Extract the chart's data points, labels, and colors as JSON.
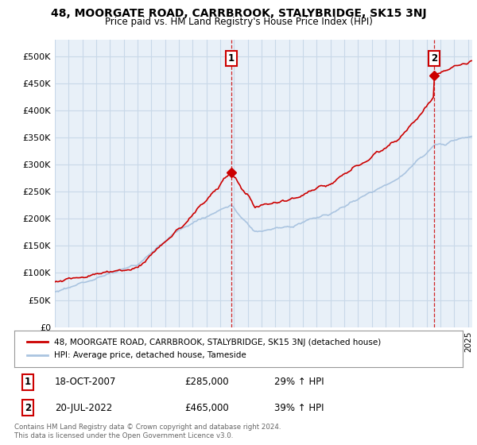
{
  "title": "48, MOORGATE ROAD, CARRBROOK, STALYBRIDGE, SK15 3NJ",
  "subtitle": "Price paid vs. HM Land Registry's House Price Index (HPI)",
  "ylabel_ticks": [
    "£0",
    "£50K",
    "£100K",
    "£150K",
    "£200K",
    "£250K",
    "£300K",
    "£350K",
    "£400K",
    "£450K",
    "£500K"
  ],
  "ytick_values": [
    0,
    50000,
    100000,
    150000,
    200000,
    250000,
    300000,
    350000,
    400000,
    450000,
    500000
  ],
  "ylim": [
    0,
    530000
  ],
  "xlim_start": 1995.0,
  "xlim_end": 2025.3,
  "hpi_color": "#aac4e0",
  "price_color": "#cc0000",
  "annotation_box_color": "#cc0000",
  "grid_color": "#c8d8e8",
  "chart_bg_color": "#e8f0f8",
  "background_color": "#ffffff",
  "legend_label_red": "48, MOORGATE ROAD, CARRBROOK, STALYBRIDGE, SK15 3NJ (detached house)",
  "legend_label_blue": "HPI: Average price, detached house, Tameside",
  "note1_label": "1",
  "note1_date": "18-OCT-2007",
  "note1_price": "£285,000",
  "note1_pct": "29% ↑ HPI",
  "note2_label": "2",
  "note2_date": "20-JUL-2022",
  "note2_price": "£465,000",
  "note2_pct": "39% ↑ HPI",
  "footer": "Contains HM Land Registry data © Crown copyright and database right 2024.\nThis data is licensed under the Open Government Licence v3.0.",
  "purchase1_x": 2007.8,
  "purchase1_y": 285000,
  "purchase2_x": 2022.55,
  "purchase2_y": 465000
}
